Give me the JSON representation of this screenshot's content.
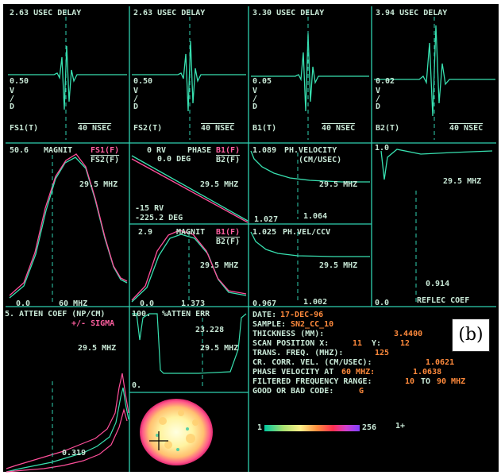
{
  "colors": {
    "background": "#000000",
    "grid": "#2fd0b0",
    "trace_green": "#38e0b0",
    "trace_pink": "#ff4f9a",
    "label_text": "#c8e8d6",
    "info_text": "#ff8a3c"
  },
  "waveforms": [
    {
      "delay": "2.63 USEC DELAY",
      "scale_value": "0.50",
      "scale_units": [
        "V",
        "/",
        "D"
      ],
      "channel": "FS1(T)",
      "time_scale": "40 NSEC"
    },
    {
      "delay": "2.63 USEC DELAY",
      "scale_value": "0.50",
      "scale_units": [
        "V",
        "/",
        "D"
      ],
      "channel": "FS2(T)",
      "time_scale": "40 NSEC"
    },
    {
      "delay": "3.30 USEC DELAY",
      "scale_value": "0.05",
      "scale_units": [
        "V",
        "/",
        "D"
      ],
      "channel": "B1(T)",
      "time_scale": "40 NSEC"
    },
    {
      "delay": "3.94 USEC DELAY",
      "scale_value": "0.02",
      "scale_units": [
        "V",
        "/",
        "D"
      ],
      "channel": "B2(T)",
      "time_scale": "40 NSEC"
    }
  ],
  "magnitude": {
    "top_value": "50.6",
    "label": "MAGNIT",
    "ratio_top": "FS1(F)",
    "ratio_bottom": "FS2(F)",
    "freq": "29.5 MHZ",
    "x_start": "0.0",
    "x_end": "60 MHZ"
  },
  "phase": {
    "top_value": "0 RV",
    "label": "PHASE",
    "ratio_top": "B1(F)",
    "ratio_bottom": "B2(F)",
    "top_deg": "0.0 DEG",
    "freq": "29.5 MHZ",
    "bottom_value": "-15 RV",
    "bottom_deg": "-225.2 DEG"
  },
  "magnitude2": {
    "top_value": "2.9",
    "label": "MAGNIT",
    "ratio_top": "B1(F)",
    "ratio_bottom": "B2(F)",
    "freq": "29.5 MHZ",
    "x_start": "0.0",
    "value": "1.373"
  },
  "ph_velocity": {
    "top_value": "1.089",
    "label": "PH.VELOCITY",
    "units": "(CM/USEC)",
    "freq": "29.5 MHZ",
    "bottom_value": "1.027",
    "marker_value": "1.064"
  },
  "ph_vel_ccv": {
    "top_value": "1.025",
    "label": "PH.VEL/CCV",
    "freq": "29.5 MHZ",
    "bottom_value": "0.967",
    "marker_value": "1.002"
  },
  "reflec": {
    "top_value": "1.0",
    "freq": "29.5 MHZ",
    "marker_value": "0.914",
    "x_start": "0.0",
    "label": "REFLEC COEF"
  },
  "atten": {
    "title": "5. ATTEN COEF (NP/CM)",
    "sigma": "+/- SIGMA",
    "freq": "29.5 MHZ",
    "value": "0.319"
  },
  "atten_err": {
    "top_value": "100.",
    "label": "%ATTEN ERR",
    "value": "23.228",
    "freq": "29.5 MHZ",
    "bottom_value": "0."
  },
  "info": {
    "date_label": "DATE:",
    "date": "17-DEC-96",
    "sample_label": "SAMPLE:",
    "sample": "SN2_CC_10",
    "thickness_label": "THICKNESS (MM):",
    "thickness": "3.4400",
    "scan_label": "SCAN POSITION X:",
    "scan_x": "11",
    "scan_y_label": "Y:",
    "scan_y": "12",
    "trans_label": "TRANS. FREQ. (MHZ):",
    "trans": "125",
    "cr_label": "CR. CORR. VEL. (CM/USEC):",
    "cr": "1.0621",
    "phase_vel_label": "PHASE VELOCITY AT",
    "phase_vel_freq": "60 MHZ:",
    "phase_vel": "1.0638",
    "range_label": "FILTERED FREQUENCY RANGE:",
    "range_from": "10",
    "range_to_label": "TO",
    "range_to": "90 MHZ",
    "code_label": "GOOD OR BAD CODE:",
    "code": "G"
  },
  "colorbar": {
    "min": "1",
    "max": "256",
    "marker": "1+"
  },
  "panel_label": "(b)"
}
